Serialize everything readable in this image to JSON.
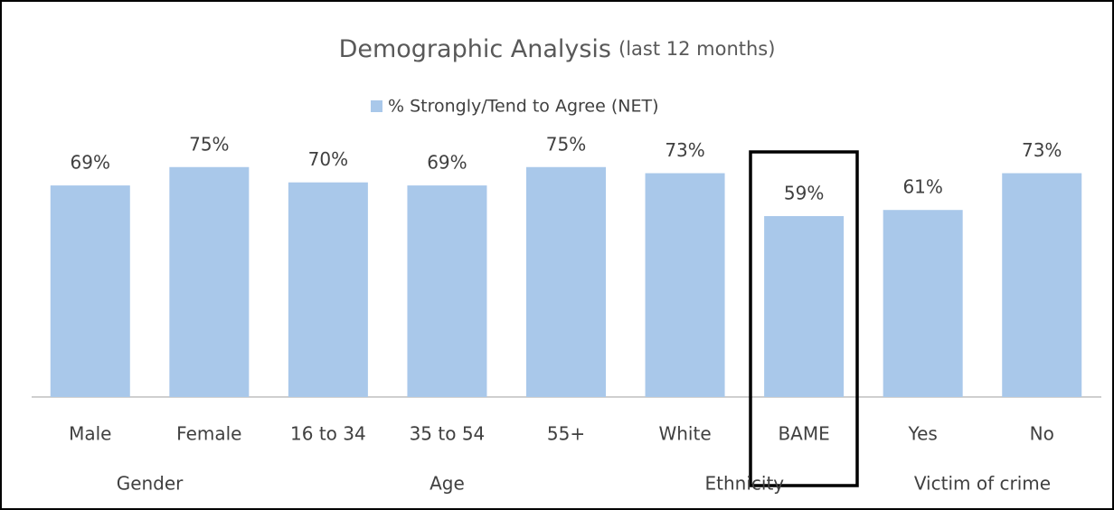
{
  "chart_data": {
    "type": "bar",
    "title": "Demographic Analysis",
    "subtitle": "(last 12 months)",
    "categories": [
      "Male",
      "Female",
      "16 to 34",
      "35 to 54",
      "55+",
      "White",
      "BAME",
      "Yes",
      "No"
    ],
    "category_groups": [
      "Gender",
      "Gender",
      "Age",
      "Age",
      "Age",
      "Ethnicity",
      "Ethnicity",
      "Victim of crime",
      "Victim of crime"
    ],
    "series": [
      {
        "name": "% Strongly/Tend to Agree (NET)",
        "color": "#a9c8ea",
        "values": [
          69,
          75,
          70,
          69,
          75,
          73,
          59,
          61,
          73
        ],
        "value_labels": [
          "69%",
          "75%",
          "70%",
          "69%",
          "75%",
          "73%",
          "59%",
          "61%",
          "73%"
        ]
      }
    ],
    "ylim": [
      0,
      100
    ],
    "legend": "top"
  }
}
